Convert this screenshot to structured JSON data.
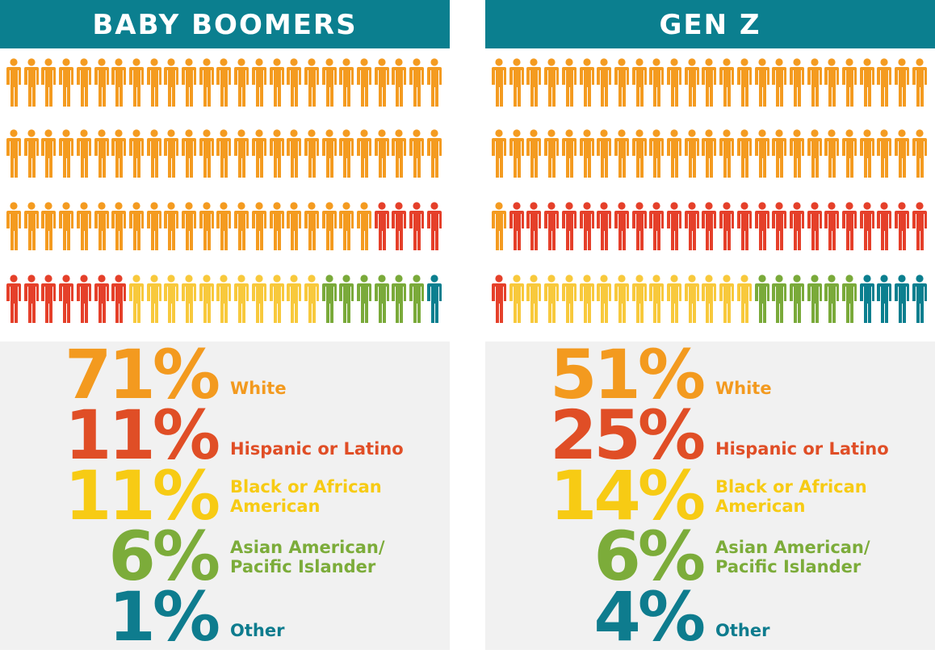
{
  "colors": {
    "White": "#f49b20",
    "Hispanic or Latino": "#e5402a",
    "Black or African American": "#f8c93c",
    "Asian American/Pacific Islander": "#7aaa3a",
    "Other": "#0b7f8f"
  },
  "text_colors": [
    "#f39a1f",
    "#e04e26",
    "#f7cb14",
    "#7cac3a",
    "#0e7c8e"
  ],
  "chart_data": [
    {
      "type": "pictogram",
      "title": "BABY BOOMERS",
      "total_icons": 100,
      "categories": [
        "White",
        "Hispanic or Latino",
        "Black or African American",
        "Asian American/Pacific Islander",
        "Other"
      ],
      "values": [
        71,
        11,
        11,
        6,
        1
      ],
      "stats": [
        {
          "value": "71%",
          "label": "White"
        },
        {
          "value": "11%",
          "label": "Hispanic or Latino"
        },
        {
          "value": "11%",
          "label": "Black or African American"
        },
        {
          "value": "6%",
          "label": "Asian American/ Pacific Islander"
        },
        {
          "value": "1%",
          "label": "Other"
        }
      ]
    },
    {
      "type": "pictogram",
      "title": "GEN Z",
      "total_icons": 100,
      "categories": [
        "White",
        "Hispanic or Latino",
        "Black or African American",
        "Asian American/Pacific Islander",
        "Other"
      ],
      "values": [
        51,
        25,
        14,
        6,
        4
      ],
      "stats": [
        {
          "value": "51%",
          "label": "White"
        },
        {
          "value": "25%",
          "label": "Hispanic or Latino"
        },
        {
          "value": "14%",
          "label": "Black or African American"
        },
        {
          "value": "6%",
          "label": "Asian American/ Pacific Islander"
        },
        {
          "value": "4%",
          "label": "Other"
        }
      ]
    }
  ]
}
